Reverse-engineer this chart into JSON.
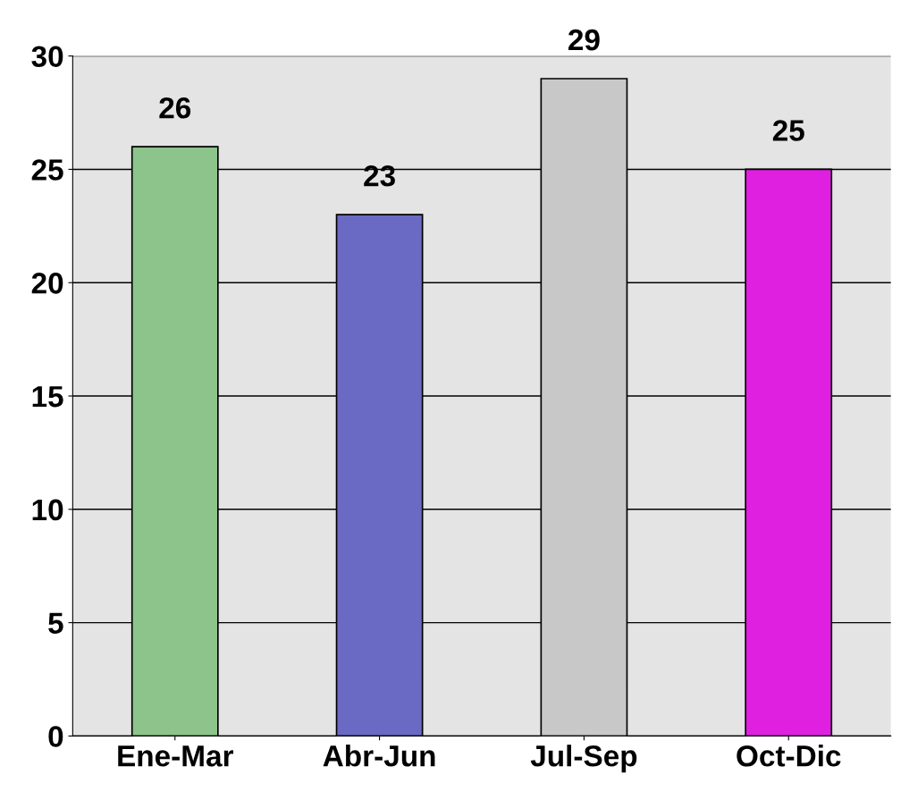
{
  "chart_data": {
    "type": "bar",
    "categories": [
      "Ene-Mar",
      "Abr-Jun",
      "Jul-Sep",
      "Oct-Dic"
    ],
    "values": [
      26,
      23,
      29,
      25
    ],
    "colors": [
      "#8cc48c",
      "#6a6ac4",
      "#c8c8c8",
      "#e020e0"
    ],
    "ylim": [
      0,
      30
    ],
    "yticks": [
      0,
      5,
      10,
      15,
      20,
      25,
      30
    ],
    "grid": "y",
    "data_labels": true
  }
}
